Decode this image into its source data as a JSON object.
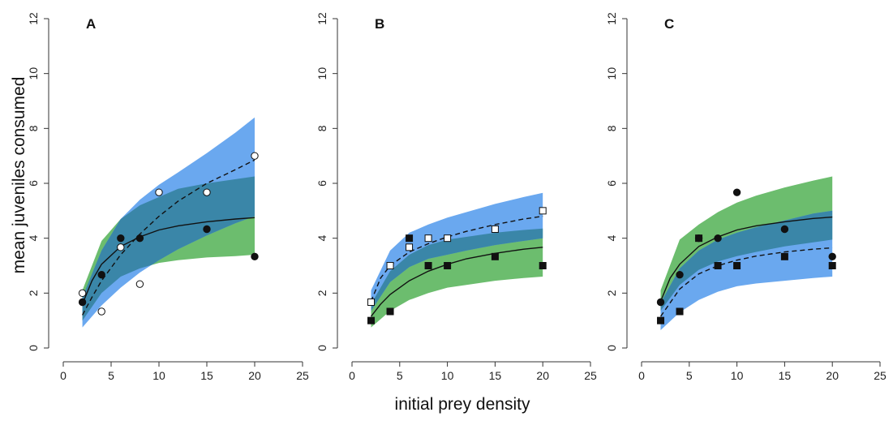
{
  "figure": {
    "ylabel": "mean juveniles consumed",
    "xlabel": "initial prey density"
  },
  "colors": {
    "blue_band": "#6aa8ef",
    "green_band": "#6cbd6e",
    "overlap": "#3a86a8",
    "line": "#111111"
  },
  "chart_data": [
    {
      "type": "scatter",
      "panel_label": "A",
      "xlim": [
        0,
        25
      ],
      "ylim": [
        0,
        12
      ],
      "xticks": [
        0,
        5,
        10,
        15,
        20,
        25
      ],
      "yticks": [
        0,
        2,
        4,
        6,
        8,
        10,
        12
      ],
      "series": [
        {
          "marker": "filled-circle",
          "x": [
            2,
            4,
            6,
            8,
            15,
            20
          ],
          "y": [
            1.67,
            2.67,
            4.0,
            4.0,
            4.33,
            3.33
          ],
          "fit": {
            "style": "solid",
            "x": [
              2,
              3,
              4,
              6,
              8,
              10,
              12,
              15,
              18,
              20
            ],
            "y": [
              1.6,
              2.45,
              3.05,
              3.7,
              4.05,
              4.3,
              4.45,
              4.6,
              4.7,
              4.75
            ]
          },
          "band": {
            "color": "green",
            "x": [
              2,
              4,
              6,
              8,
              10,
              12,
              15,
              18,
              20
            ],
            "lower": [
              1.0,
              2.0,
              2.6,
              2.9,
              3.1,
              3.2,
              3.3,
              3.35,
              3.4
            ],
            "upper": [
              2.1,
              3.9,
              4.7,
              5.2,
              5.5,
              5.8,
              6.0,
              6.15,
              6.25
            ]
          }
        },
        {
          "marker": "open-circle",
          "x": [
            2,
            4,
            6,
            8,
            10,
            15,
            20
          ],
          "y": [
            2.0,
            1.33,
            3.67,
            2.33,
            5.67,
            5.67,
            7.0
          ],
          "fit": {
            "style": "dashed",
            "x": [
              2,
              3,
              4,
              6,
              8,
              10,
              12,
              15,
              18,
              20
            ],
            "y": [
              1.2,
              1.85,
              2.45,
              3.4,
              4.15,
              4.8,
              5.35,
              6.0,
              6.5,
              6.85
            ]
          },
          "band": {
            "color": "blue",
            "x": [
              2,
              4,
              6,
              8,
              10,
              12,
              15,
              18,
              20
            ],
            "lower": [
              0.75,
              1.55,
              2.2,
              2.75,
              3.2,
              3.6,
              4.1,
              4.55,
              4.8
            ],
            "upper": [
              1.85,
              3.55,
              4.7,
              5.4,
              5.95,
              6.4,
              7.1,
              7.85,
              8.4
            ]
          }
        }
      ]
    },
    {
      "type": "scatter",
      "panel_label": "B",
      "xlim": [
        0,
        25
      ],
      "ylim": [
        0,
        12
      ],
      "xticks": [
        0,
        5,
        10,
        15,
        20,
        25
      ],
      "yticks": [
        0,
        2,
        4,
        6,
        8,
        10,
        12
      ],
      "series": [
        {
          "marker": "filled-square",
          "x": [
            2,
            4,
            6,
            8,
            10,
            15,
            20
          ],
          "y": [
            1.0,
            1.33,
            4.0,
            3.0,
            3.0,
            3.33,
            3.0
          ],
          "fit": {
            "style": "solid",
            "x": [
              2,
              3,
              4,
              6,
              8,
              10,
              12,
              15,
              18,
              20
            ],
            "y": [
              1.15,
              1.6,
              1.95,
              2.45,
              2.8,
              3.05,
              3.25,
              3.45,
              3.6,
              3.67
            ]
          },
          "band": {
            "color": "green",
            "x": [
              2,
              4,
              6,
              8,
              10,
              12,
              15,
              18,
              20
            ],
            "lower": [
              0.75,
              1.35,
              1.75,
              2.0,
              2.2,
              2.3,
              2.45,
              2.55,
              2.6
            ],
            "upper": [
              1.6,
              2.8,
              3.4,
              3.75,
              3.95,
              4.05,
              4.2,
              4.3,
              4.35
            ]
          }
        },
        {
          "marker": "open-square",
          "x": [
            2,
            4,
            6,
            8,
            10,
            15,
            20
          ],
          "y": [
            1.67,
            3.0,
            3.67,
            4.0,
            4.0,
            4.33,
            5.0
          ],
          "fit": {
            "style": "dashed",
            "x": [
              2,
              3,
              4,
              6,
              8,
              10,
              12,
              15,
              18,
              20
            ],
            "y": [
              1.7,
              2.55,
              3.0,
              3.5,
              3.8,
              4.05,
              4.25,
              4.5,
              4.7,
              4.8
            ]
          },
          "band": {
            "color": "blue",
            "x": [
              2,
              4,
              6,
              8,
              10,
              12,
              15,
              18,
              20
            ],
            "lower": [
              1.35,
              2.4,
              2.95,
              3.25,
              3.4,
              3.55,
              3.75,
              3.9,
              4.0
            ],
            "upper": [
              2.1,
              3.55,
              4.2,
              4.5,
              4.75,
              4.95,
              5.25,
              5.5,
              5.65
            ]
          }
        }
      ]
    },
    {
      "type": "scatter",
      "panel_label": "C",
      "xlim": [
        0,
        25
      ],
      "ylim": [
        0,
        12
      ],
      "xticks": [
        0,
        5,
        10,
        15,
        20,
        25
      ],
      "yticks": [
        0,
        2,
        4,
        6,
        8,
        10,
        12
      ],
      "series": [
        {
          "marker": "filled-circle",
          "x": [
            2,
            4,
            6,
            8,
            10,
            15,
            20
          ],
          "y": [
            1.67,
            2.67,
            4.0,
            4.0,
            5.67,
            4.33,
            3.33
          ],
          "fit": {
            "style": "solid",
            "x": [
              2,
              3,
              4,
              6,
              8,
              10,
              12,
              15,
              18,
              20
            ],
            "y": [
              1.7,
              2.55,
              3.05,
              3.7,
              4.05,
              4.3,
              4.45,
              4.6,
              4.72,
              4.77
            ]
          },
          "band": {
            "color": "green",
            "x": [
              2,
              4,
              6,
              8,
              10,
              12,
              15,
              18,
              20
            ],
            "lower": [
              1.35,
              2.3,
              2.85,
              3.15,
              3.35,
              3.5,
              3.7,
              3.85,
              3.95
            ],
            "upper": [
              2.1,
              3.95,
              4.5,
              4.95,
              5.3,
              5.55,
              5.85,
              6.1,
              6.25
            ]
          }
        },
        {
          "marker": "filled-square",
          "x": [
            2,
            4,
            6,
            8,
            10,
            15,
            20
          ],
          "y": [
            1.0,
            1.33,
            4.0,
            3.0,
            3.0,
            3.33,
            3.0
          ],
          "fit": {
            "style": "dashed",
            "x": [
              2,
              3,
              4,
              6,
              8,
              10,
              12,
              15,
              18,
              20
            ],
            "y": [
              1.15,
              1.65,
              2.15,
              2.7,
              3.0,
              3.2,
              3.35,
              3.5,
              3.6,
              3.65
            ]
          },
          "band": {
            "color": "blue",
            "x": [
              2,
              4,
              6,
              8,
              10,
              12,
              15,
              18,
              20
            ],
            "lower": [
              0.65,
              1.3,
              1.75,
              2.05,
              2.25,
              2.35,
              2.45,
              2.55,
              2.6
            ],
            "upper": [
              1.65,
              2.9,
              3.55,
              3.95,
              4.2,
              4.4,
              4.65,
              4.9,
              5.0
            ]
          }
        }
      ]
    }
  ]
}
